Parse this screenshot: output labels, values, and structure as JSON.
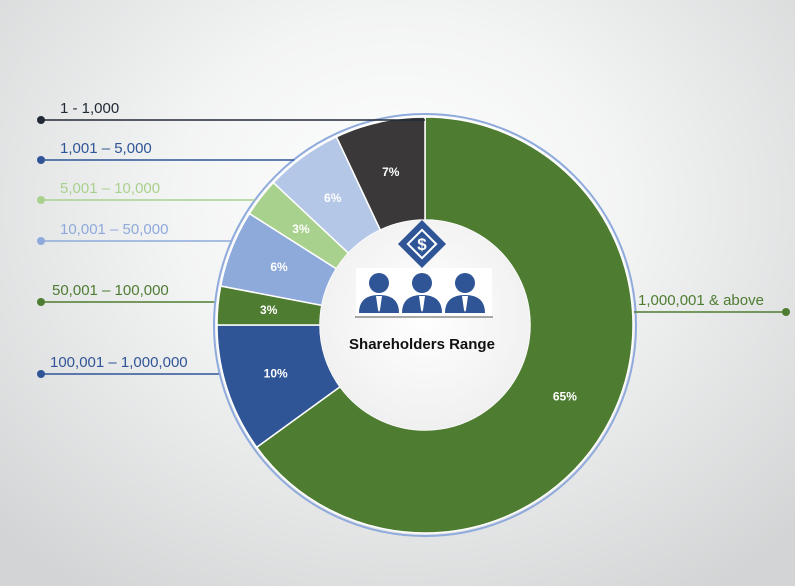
{
  "chart_data": {
    "type": "pie",
    "style": "donut",
    "center_title": "Shareholders Range",
    "center_icon": "shareholders-dollar-icon",
    "legend_placement": "left-and-right-callouts",
    "slices": [
      {
        "label": "1,000,001 & above",
        "value": 65,
        "value_label": "65%",
        "color": "#4e7c31"
      },
      {
        "label": "100,001 – 1,000,000",
        "value": 10,
        "value_label": "10%",
        "color": "#2f5597"
      },
      {
        "label": "50,001 – 100,000",
        "value": 3,
        "value_label": "3%",
        "color": "#4e7c31"
      },
      {
        "label": "10,001 – 50,000",
        "value": 6,
        "value_label": "6%",
        "color": "#8eaadb"
      },
      {
        "label": "5,001 – 10,000",
        "value": 3,
        "value_label": "3%",
        "color": "#a9d18e"
      },
      {
        "label": "1,001 – 5,000",
        "value": 6,
        "value_label": "6%",
        "color": "#b4c7e7"
      },
      {
        "label": "1 - 1,000",
        "value": 7,
        "value_label": "7%",
        "color": "#3a3838"
      }
    ],
    "label_colors": {
      "1,000,001 & above": "#4e7c31",
      "100,001 – 1,000,000": "#2f5597",
      "50,001 – 100,000": "#4e7c31",
      "10,001 – 50,000": "#8eaadb",
      "5,001 – 10,000": "#a9d18e",
      "1,001 – 5,000": "#2f5597",
      "1 - 1,000": "#222a35"
    }
  }
}
